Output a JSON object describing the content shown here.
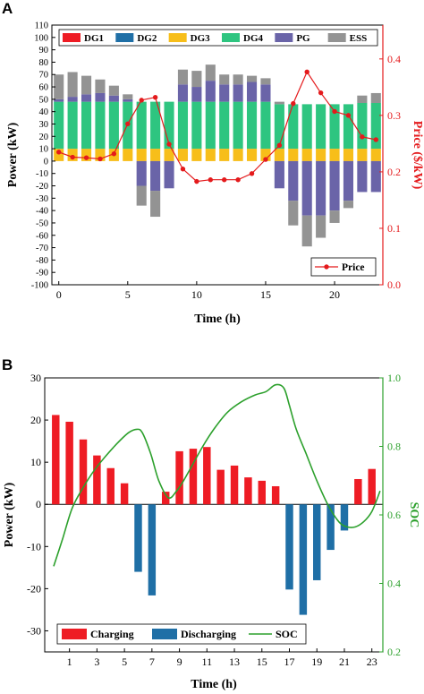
{
  "panel_labels": {
    "a": "A",
    "b": "B"
  },
  "chart_data": [
    {
      "type": "bar",
      "panel": "A",
      "stacked": true,
      "xlabel": "Time (h)",
      "ylabel": "Power (kW)",
      "y2label": "Price ($/kW)",
      "xlim": [
        -0.5,
        23.5
      ],
      "ylim": [
        -100,
        110
      ],
      "y2lim": [
        0,
        0.46
      ],
      "xticks": [
        0,
        5,
        10,
        15,
        20
      ],
      "yticks": [
        -100,
        -90,
        -80,
        -70,
        -60,
        -50,
        -40,
        -30,
        -20,
        -10,
        0,
        10,
        20,
        30,
        40,
        50,
        60,
        70,
        80,
        90,
        100,
        110
      ],
      "y2ticks": [
        0.0,
        0.1,
        0.2,
        0.3,
        0.4
      ],
      "legend_position": "top",
      "categories": [
        0,
        1,
        2,
        3,
        4,
        5,
        6,
        7,
        8,
        9,
        10,
        11,
        12,
        13,
        14,
        15,
        16,
        17,
        18,
        19,
        20,
        21,
        22,
        23
      ],
      "series": [
        {
          "name": "DG1",
          "color": "#ee1c24",
          "values": [
            0,
            0,
            0,
            0,
            0,
            0,
            0,
            0,
            0,
            0,
            0,
            0,
            0,
            0,
            0,
            0,
            0,
            0,
            0,
            0,
            0,
            0,
            0,
            0
          ]
        },
        {
          "name": "DG2",
          "color": "#1f6fa6",
          "values": [
            0,
            0,
            0,
            0,
            0,
            0,
            0,
            0,
            0,
            0,
            0,
            0,
            0,
            0,
            0,
            0,
            0,
            0,
            0,
            0,
            0,
            0,
            0,
            0
          ]
        },
        {
          "name": "DG3",
          "color": "#f7be1a",
          "values": [
            10,
            10,
            10,
            10,
            10,
            10,
            10,
            10,
            10,
            10,
            10,
            10,
            10,
            10,
            10,
            10,
            10,
            10,
            10,
            10,
            10,
            10,
            10,
            10
          ]
        },
        {
          "name": "DG4",
          "color": "#2ec580",
          "values": [
            38,
            38,
            38,
            38,
            38,
            38,
            38,
            38,
            38,
            38,
            38,
            38,
            38,
            38,
            38,
            38,
            36,
            36,
            36,
            36,
            36,
            36,
            37,
            37
          ]
        },
        {
          "name": "PG",
          "color": "#6a64a8",
          "values": [
            2,
            4,
            6,
            7,
            5,
            2,
            -20,
            -24,
            -22,
            14,
            12,
            17,
            14,
            14,
            16,
            14,
            -22,
            -32,
            -44,
            -44,
            -40,
            -32,
            -25,
            -25
          ]
        },
        {
          "name": "ESS",
          "color": "#939393",
          "values": [
            20,
            20,
            15,
            11,
            8,
            4,
            -16,
            -21,
            0,
            12,
            13,
            13,
            8,
            8,
            5,
            5,
            2,
            -20,
            -25,
            -18,
            -10,
            -6,
            6,
            8
          ]
        }
      ],
      "line": {
        "name": "Price",
        "color": "#e41a1c",
        "axis": "right",
        "values": [
          0.235,
          0.226,
          0.225,
          0.223,
          0.232,
          0.285,
          0.327,
          0.332,
          0.249,
          0.205,
          0.183,
          0.186,
          0.186,
          0.186,
          0.197,
          0.222,
          0.247,
          0.321,
          0.377,
          0.34,
          0.307,
          0.3,
          0.262,
          0.257
        ]
      }
    },
    {
      "type": "bar",
      "panel": "B",
      "xlabel": "Time (h)",
      "ylabel": "Power (kW)",
      "y2label": "SOC",
      "xlim": [
        -0.8,
        23.8
      ],
      "ylim": [
        -35,
        30
      ],
      "y2lim": [
        0.2,
        1.0
      ],
      "xticks": [
        1,
        3,
        5,
        7,
        9,
        11,
        13,
        15,
        17,
        19,
        21,
        23
      ],
      "yticks": [
        -30,
        -20,
        -10,
        0,
        10,
        20,
        30
      ],
      "y2ticks": [
        0.2,
        0.4,
        0.6,
        0.8,
        1.0
      ],
      "legend_position": "bottom",
      "categories": [
        0,
        1,
        2,
        3,
        4,
        5,
        6,
        7,
        8,
        9,
        10,
        11,
        12,
        13,
        14,
        15,
        16,
        17,
        18,
        19,
        20,
        21,
        22,
        23
      ],
      "series": [
        {
          "name": "Charging",
          "color": "#ee1c24",
          "values": [
            21.2,
            19.6,
            15.4,
            11.6,
            8.6,
            5.0,
            0,
            0,
            3.0,
            12.6,
            13.2,
            13.6,
            8.2,
            9.2,
            6.4,
            5.6,
            4.3,
            0,
            0,
            0,
            0,
            0,
            6.0,
            8.4
          ]
        },
        {
          "name": "Discharging",
          "color": "#1f6fa6",
          "values": [
            0,
            0,
            0,
            0,
            0,
            0,
            -16.0,
            -21.6,
            0,
            0,
            0,
            0,
            0,
            0,
            0,
            0,
            0,
            -20.2,
            -26.2,
            -18.0,
            -10.8,
            -6.2,
            0,
            0
          ]
        }
      ],
      "line": {
        "name": "SOC",
        "color": "#2ca02c",
        "axis": "right",
        "x": [
          -0.15,
          0.5,
          1.2,
          2.0,
          2.8,
          3.6,
          4.5,
          5.3,
          5.9,
          6.3,
          6.9,
          7.5,
          8.2,
          8.8,
          9.3,
          10.0,
          10.7,
          11.5,
          12.5,
          13.5,
          14.5,
          15.3,
          16.0,
          16.6,
          17.0,
          17.5,
          18.2,
          19.0,
          19.8,
          20.6,
          21.2,
          21.8,
          22.4,
          23.0,
          23.6
        ],
        "values": [
          0.45,
          0.53,
          0.62,
          0.68,
          0.73,
          0.77,
          0.81,
          0.84,
          0.85,
          0.84,
          0.78,
          0.7,
          0.65,
          0.67,
          0.7,
          0.75,
          0.8,
          0.85,
          0.9,
          0.93,
          0.95,
          0.96,
          0.98,
          0.97,
          0.92,
          0.85,
          0.78,
          0.7,
          0.63,
          0.58,
          0.565,
          0.565,
          0.58,
          0.61,
          0.67
        ]
      }
    }
  ]
}
